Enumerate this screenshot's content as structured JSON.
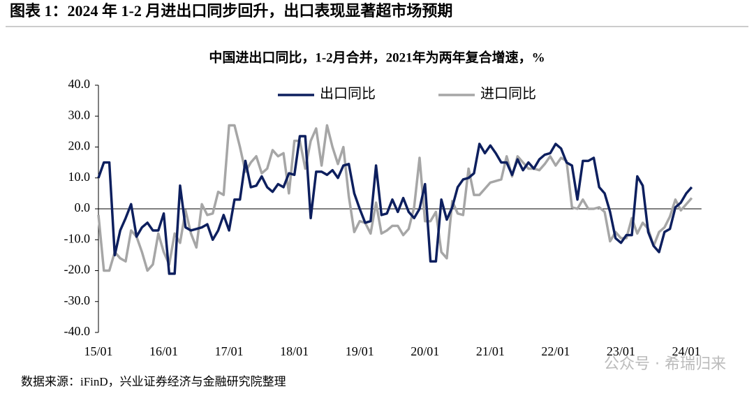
{
  "header": {
    "title": "图表 1：2024 年 1-2 月进出口同步回升，出口表现显著超市场预期"
  },
  "chart_data": {
    "type": "line",
    "title": "中国进出口同比，1-2月合并，2021年为两年复合增速，%",
    "categories": [
      "15/01",
      null,
      null,
      null,
      null,
      null,
      null,
      null,
      null,
      null,
      null,
      null,
      "16/01",
      null,
      null,
      null,
      null,
      null,
      null,
      null,
      null,
      null,
      null,
      null,
      "17/01",
      null,
      null,
      null,
      null,
      null,
      null,
      null,
      null,
      null,
      null,
      null,
      "18/01",
      null,
      null,
      null,
      null,
      null,
      null,
      null,
      null,
      null,
      null,
      null,
      "19/01",
      null,
      null,
      null,
      null,
      null,
      null,
      null,
      null,
      null,
      null,
      null,
      "20/01",
      null,
      null,
      null,
      null,
      null,
      null,
      null,
      null,
      null,
      null,
      null,
      "21/01",
      null,
      null,
      null,
      null,
      null,
      null,
      null,
      null,
      null,
      null,
      null,
      "22/01",
      null,
      null,
      null,
      null,
      null,
      null,
      null,
      null,
      null,
      null,
      null,
      "23/01",
      null,
      null,
      null,
      null,
      null,
      null,
      null,
      null,
      null,
      null,
      null,
      "24/01",
      null
    ],
    "series": [
      {
        "name": "出口同比",
        "color": "#0d1f5e",
        "values": [
          10,
          15,
          15,
          -15,
          -7,
          -3,
          1.5,
          -9,
          -6,
          -4.5,
          -7,
          -7,
          -1.5,
          -21,
          -21,
          7.5,
          -6,
          -7,
          -6.5,
          -6,
          -5,
          -10,
          -7,
          -2,
          -7,
          3,
          3,
          15.5,
          7,
          7.5,
          10.5,
          7,
          5.5,
          8,
          7,
          11.5,
          11,
          23.5,
          23.5,
          -3,
          12,
          12,
          11,
          12.5,
          10,
          14,
          14.5,
          5,
          0,
          -4.5,
          -4,
          14,
          -2,
          -1.5,
          3,
          -1,
          3.5,
          -1,
          -3,
          0,
          8,
          -17,
          -17,
          3,
          -3.5,
          0.5,
          7,
          9.5,
          10,
          11.5,
          21,
          18,
          20.5,
          18,
          15,
          15,
          11,
          16,
          12.5,
          15,
          13,
          16,
          17.5,
          18,
          21,
          19.5,
          15,
          14,
          3,
          15.5,
          15.5,
          16.5,
          7,
          5,
          -1,
          -9.5,
          -11,
          -8.5,
          -8.5,
          10.5,
          7.5,
          -7.5,
          -12,
          -14,
          -7.5,
          -6.5,
          0.5,
          2,
          5,
          7
        ]
      },
      {
        "name": "进口同比",
        "color": "#a6a6a6",
        "values": [
          -2,
          -20,
          -20,
          -14,
          -16,
          -17,
          -7,
          -9,
          -14,
          -20,
          -18,
          -8,
          -14,
          -18,
          -8,
          -11,
          -0.5,
          -8,
          -12.5,
          1.5,
          -2,
          -1.5,
          5.5,
          4.5,
          27,
          27,
          20,
          12,
          15,
          17,
          11.5,
          13,
          19,
          17,
          18,
          5,
          22,
          22,
          13,
          22,
          26,
          14,
          27,
          20,
          14.5,
          20,
          4,
          -7.5,
          -4,
          -4.5,
          -8,
          2,
          -8,
          -7,
          -5.5,
          -5.5,
          -8.5,
          -6.5,
          0.5,
          16.5,
          -4,
          -4,
          -1,
          -14,
          -16,
          2.5,
          -1.5,
          -2,
          13,
          4.5,
          4.5,
          6.5,
          8.5,
          9,
          9.5,
          17,
          10.5,
          17,
          15,
          13,
          13,
          12.5,
          14.5,
          17,
          14,
          16.5,
          15.5,
          0.5,
          0,
          3,
          0,
          0,
          0.5,
          -1,
          -10.5,
          -7.5,
          -9.5,
          -9.5,
          -3,
          -8,
          -4.5,
          -6.5,
          -12,
          -7.5,
          -6,
          -2.5,
          3,
          -0.5,
          1.5,
          3.5
        ]
      }
    ],
    "ylim": [
      -40,
      40
    ],
    "yticks": [
      {
        "value": -40,
        "label": "-40.0"
      },
      {
        "value": -30,
        "label": "-30.0"
      },
      {
        "value": -20,
        "label": "-20.0"
      },
      {
        "value": -10,
        "label": "-10.0"
      },
      {
        "value": 0,
        "label": "0.0"
      },
      {
        "value": 10,
        "label": "10.0"
      },
      {
        "value": 20,
        "label": "20.0"
      },
      {
        "value": 30,
        "label": "30.0"
      },
      {
        "value": 40,
        "label": "40.0"
      }
    ],
    "legend": "top"
  },
  "source": "数据来源：iFinD，兴业证券经济与金融研究院整理",
  "watermark": "公众号 · 希瑞归来"
}
